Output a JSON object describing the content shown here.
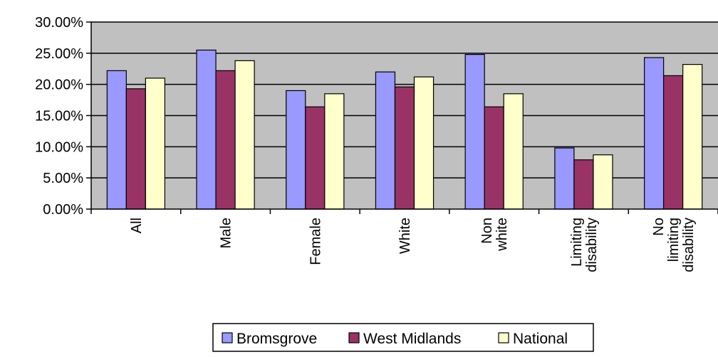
{
  "chart_data": {
    "type": "bar",
    "categories": [
      [
        "All"
      ],
      [
        "Male"
      ],
      [
        "Female"
      ],
      [
        "White"
      ],
      [
        "Non",
        "white"
      ],
      [
        "Limiting",
        "disability"
      ],
      [
        "No",
        "limiting",
        "disability"
      ]
    ],
    "series": [
      {
        "name": "Bromsgrove",
        "color": "#9999ff",
        "values": [
          22.2,
          25.5,
          19.0,
          22.0,
          24.8,
          9.8,
          24.3
        ]
      },
      {
        "name": "West Midlands",
        "color": "#993366",
        "values": [
          19.3,
          22.2,
          16.4,
          19.6,
          16.4,
          7.9,
          21.4
        ]
      },
      {
        "name": "National",
        "color": "#ffffcc",
        "values": [
          21.0,
          23.8,
          18.5,
          21.2,
          18.5,
          8.7,
          23.2
        ]
      }
    ],
    "y_ticks": [
      "0.00%",
      "5.00%",
      "10.00%",
      "15.00%",
      "20.00%",
      "25.00%",
      "30.00%"
    ],
    "ylim": [
      0,
      30
    ],
    "y_format": "percent",
    "plot_background": "#c0c0c0",
    "grid": true,
    "legend_position": "bottom-center"
  }
}
